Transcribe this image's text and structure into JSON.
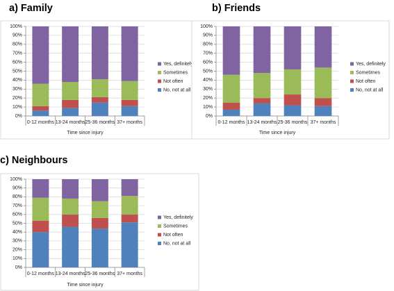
{
  "chart_data": [
    {
      "type": "bar",
      "stacked": true,
      "title": "a) Family",
      "xlabel": "Time since injury",
      "ylabel": "",
      "ylim": [
        0,
        100
      ],
      "yticks": [
        "0%",
        "10%",
        "20%",
        "30%",
        "40%",
        "50%",
        "60%",
        "70%",
        "80%",
        "90%",
        "100%"
      ],
      "categories": [
        "0-12 months",
        "13-24 months",
        "25-36 months",
        "37+ months"
      ],
      "series": [
        {
          "name": "No, not at all",
          "color": "#4f81bd",
          "values": [
            6,
            9,
            15,
            11
          ]
        },
        {
          "name": "Not often",
          "color": "#c0504d",
          "values": [
            5,
            9,
            6,
            7
          ]
        },
        {
          "name": "Sometimes",
          "color": "#9bbb59",
          "values": [
            25,
            20,
            20,
            21
          ]
        },
        {
          "name": "Yes, definitely",
          "color": "#8064a2",
          "values": [
            64,
            62,
            59,
            61
          ]
        }
      ],
      "legend": [
        "Yes, definitely",
        "Sometimes",
        "Not often",
        "No, not at all"
      ],
      "legend_position": "right",
      "grid": true
    },
    {
      "type": "bar",
      "stacked": true,
      "title": "b) Friends",
      "xlabel": "Time since injury",
      "ylabel": "",
      "ylim": [
        0,
        100
      ],
      "yticks": [
        "0%",
        "10%",
        "20%",
        "30%",
        "40%",
        "50%",
        "60%",
        "70%",
        "80%",
        "90%",
        "100%"
      ],
      "categories": [
        "0-12 months",
        "13-24 months",
        "25-36 months",
        "37+ months"
      ],
      "series": [
        {
          "name": "No, not at all",
          "color": "#4f81bd",
          "values": [
            7,
            14,
            12,
            11
          ]
        },
        {
          "name": "Not often",
          "color": "#c0504d",
          "values": [
            8,
            6,
            12,
            9
          ]
        },
        {
          "name": "Sometimes",
          "color": "#9bbb59",
          "values": [
            31,
            28,
            28,
            34
          ]
        },
        {
          "name": "Yes, definitely",
          "color": "#8064a2",
          "values": [
            54,
            52,
            48,
            46
          ]
        }
      ],
      "legend": [
        "Yes, definitely",
        "Sometimes",
        "Not often",
        "No, not at all"
      ],
      "legend_position": "right",
      "grid": true
    },
    {
      "type": "bar",
      "stacked": true,
      "title": "c) Neighbours",
      "xlabel": "Time since injury",
      "ylabel": "",
      "ylim": [
        0,
        100
      ],
      "yticks": [
        "0%",
        "10%",
        "20%",
        "30%",
        "40%",
        "50%",
        "60%",
        "70%",
        "80%",
        "90%",
        "100%"
      ],
      "categories": [
        "0-12 months",
        "13-24 months",
        "25-36 months",
        "37+ months"
      ],
      "series": [
        {
          "name": "No, not at all",
          "color": "#4f81bd",
          "values": [
            40,
            46,
            44,
            51
          ]
        },
        {
          "name": "Not often",
          "color": "#c0504d",
          "values": [
            13,
            14,
            12,
            9
          ]
        },
        {
          "name": "Sometimes",
          "color": "#9bbb59",
          "values": [
            26,
            18,
            19,
            21
          ]
        },
        {
          "name": "Yes, definitely",
          "color": "#8064a2",
          "values": [
            21,
            22,
            25,
            19
          ]
        }
      ],
      "legend": [
        "Yes, definitely",
        "Sometimes",
        "Not often",
        "No, not at all"
      ],
      "legend_position": "right",
      "grid": true
    }
  ]
}
